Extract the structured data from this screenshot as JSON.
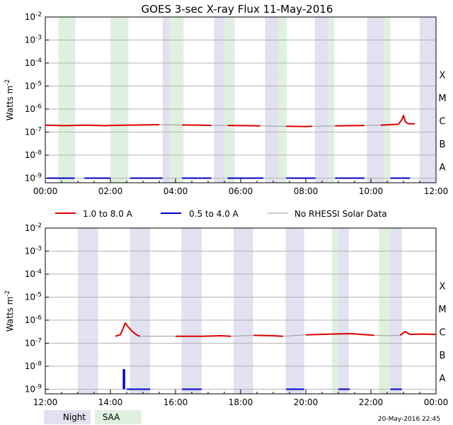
{
  "title": "GOES 3-sec X-ray Flux   11-May-2016",
  "ylabel": "Watts m-2",
  "ytick_labels": [
    "10-2",
    "10-3",
    "10-4",
    "10-5",
    "10-6",
    "10-7",
    "10-8",
    "10-9"
  ],
  "class_labels": [
    "X",
    "M",
    "C",
    "B",
    "A"
  ],
  "legend": {
    "items": [
      {
        "label": "1.0 to 8.0 A",
        "color": "#dd0000"
      },
      {
        "label": "0.5 to 4.0 A",
        "color": "#0000cc"
      },
      {
        "label": "No RHESSI Solar Data",
        "color": "#999999"
      }
    ]
  },
  "footer": {
    "night_label": "Night",
    "saa_label": "SAA",
    "timestamp": "20-May-2016 22:45"
  },
  "colors": {
    "night": "#e1e1f0",
    "saa": "#e0f0e0",
    "long": "#dd0000",
    "short": "#0000cc",
    "nodata": "#999999"
  },
  "chart_data": [
    {
      "type": "line",
      "name": "top-panel",
      "x_unit": "hours UT",
      "xlim": [
        0,
        12
      ],
      "ylim_log10": [
        -9.2,
        -2
      ],
      "x_tick_labels": [
        "00:00",
        "02:00",
        "04:00",
        "06:00",
        "08:00",
        "10:00",
        "12:00"
      ],
      "night_bands": [
        [
          3.6,
          3.82
        ],
        [
          5.18,
          5.5
        ],
        [
          6.75,
          7.15
        ],
        [
          8.28,
          8.7
        ],
        [
          9.88,
          10.4
        ],
        [
          11.5,
          12.0
        ]
      ],
      "saa_bands": [
        [
          0.4,
          0.92
        ],
        [
          2.0,
          2.55
        ],
        [
          3.82,
          4.25
        ],
        [
          5.5,
          5.82
        ],
        [
          7.15,
          7.42
        ],
        [
          8.7,
          8.88
        ],
        [
          10.4,
          10.6
        ]
      ],
      "series": [
        {
          "name": "1.0 to 8.0 A",
          "kind": "long",
          "segments": [
            [
              [
                0.0,
                2e-07
              ],
              [
                0.6,
                1.9e-07
              ],
              [
                1.2,
                2e-07
              ],
              [
                1.8,
                1.9e-07
              ],
              [
                2.4,
                2e-07
              ],
              [
                3.0,
                2.05e-07
              ],
              [
                3.5,
                2.1e-07
              ]
            ],
            [
              [
                4.2,
                2.05e-07
              ],
              [
                4.8,
                2e-07
              ],
              [
                5.1,
                1.95e-07
              ]
            ],
            [
              [
                5.6,
                1.95e-07
              ],
              [
                6.2,
                1.9e-07
              ],
              [
                6.6,
                1.85e-07
              ]
            ],
            [
              [
                7.4,
                1.8e-07
              ],
              [
                8.0,
                1.75e-07
              ],
              [
                8.2,
                1.8e-07
              ]
            ],
            [
              [
                8.9,
                1.85e-07
              ],
              [
                9.4,
                1.9e-07
              ],
              [
                9.8,
                1.95e-07
              ]
            ],
            [
              [
                10.3,
                2e-07
              ],
              [
                10.6,
                2.1e-07
              ],
              [
                10.85,
                2.2e-07
              ],
              [
                10.95,
                3.5e-07
              ],
              [
                11.0,
                5.3e-07
              ],
              [
                11.06,
                2.8e-07
              ],
              [
                11.15,
                2.3e-07
              ],
              [
                11.35,
                2.3e-07
              ]
            ]
          ]
        },
        {
          "name": "No RHESSI Solar Data",
          "kind": "nodata",
          "segments": [
            [
              [
                3.5,
                2.1e-07
              ],
              [
                4.2,
                2.05e-07
              ]
            ],
            [
              [
                5.1,
                1.95e-07
              ],
              [
                5.6,
                1.95e-07
              ]
            ],
            [
              [
                6.6,
                1.85e-07
              ],
              [
                7.4,
                1.8e-07
              ]
            ],
            [
              [
                8.2,
                1.8e-07
              ],
              [
                8.9,
                1.85e-07
              ]
            ],
            [
              [
                9.8,
                1.95e-07
              ],
              [
                10.3,
                2e-07
              ]
            ]
          ]
        },
        {
          "name": "0.5 to 4.0 A",
          "kind": "short",
          "segments": [
            [
              [
                0.05,
                1e-09
              ],
              [
                0.9,
                1e-09
              ]
            ],
            [
              [
                1.2,
                1e-09
              ],
              [
                2.0,
                1e-09
              ]
            ],
            [
              [
                2.6,
                1e-09
              ],
              [
                3.6,
                1e-09
              ]
            ],
            [
              [
                4.2,
                1e-09
              ],
              [
                5.1,
                1e-09
              ]
            ],
            [
              [
                5.6,
                1e-09
              ],
              [
                6.7,
                1e-09
              ]
            ],
            [
              [
                7.4,
                1e-09
              ],
              [
                8.3,
                1e-09
              ]
            ],
            [
              [
                8.9,
                1e-09
              ],
              [
                9.8,
                1e-09
              ]
            ],
            [
              [
                10.6,
                1e-09
              ],
              [
                11.2,
                1e-09
              ]
            ]
          ]
        }
      ]
    },
    {
      "type": "line",
      "name": "bottom-panel",
      "x_unit": "hours UT",
      "xlim": [
        12,
        24
      ],
      "ylim_log10": [
        -9.2,
        -2
      ],
      "x_tick_labels": [
        "12:00",
        "14:00",
        "16:00",
        "18:00",
        "20:00",
        "22:00",
        "00:00"
      ],
      "night_bands": [
        [
          13.0,
          13.62
        ],
        [
          14.6,
          15.22
        ],
        [
          16.18,
          16.8
        ],
        [
          17.78,
          18.38
        ],
        [
          19.38,
          19.95
        ],
        [
          21.0,
          21.32
        ],
        [
          22.58,
          22.95
        ]
      ],
      "saa_bands": [
        [
          20.8,
          21.0
        ],
        [
          22.25,
          22.58
        ]
      ],
      "series": [
        {
          "name": "1.0 to 8.0 A",
          "kind": "long",
          "segments": [
            [
              [
                14.15,
                2e-07
              ],
              [
                14.3,
                2.3e-07
              ],
              [
                14.38,
                4e-07
              ],
              [
                14.45,
                7.5e-07
              ],
              [
                14.55,
                5e-07
              ],
              [
                14.65,
                3.5e-07
              ],
              [
                14.8,
                2.3e-07
              ],
              [
                14.9,
                2e-07
              ]
            ],
            [
              [
                16.0,
                2e-07
              ],
              [
                16.8,
                2e-07
              ],
              [
                17.4,
                2.1e-07
              ],
              [
                17.7,
                2e-07
              ]
            ],
            [
              [
                18.4,
                2.2e-07
              ],
              [
                19.0,
                2.1e-07
              ],
              [
                19.3,
                2e-07
              ]
            ],
            [
              [
                20.0,
                2.3e-07
              ],
              [
                20.8,
                2.5e-07
              ],
              [
                21.4,
                2.6e-07
              ],
              [
                21.7,
                2.4e-07
              ],
              [
                22.1,
                2.2e-07
              ]
            ],
            [
              [
                22.9,
                2.2e-07
              ],
              [
                23.05,
                3.2e-07
              ],
              [
                23.2,
                2.4e-07
              ],
              [
                23.6,
                2.5e-07
              ],
              [
                24.0,
                2.4e-07
              ]
            ]
          ]
        },
        {
          "name": "No RHESSI Solar Data",
          "kind": "nodata",
          "segments": [
            [
              [
                14.9,
                2e-07
              ],
              [
                15.5,
                2e-07
              ],
              [
                16.0,
                2e-07
              ]
            ],
            [
              [
                17.7,
                2e-07
              ],
              [
                18.4,
                2.2e-07
              ]
            ],
            [
              [
                19.3,
                2e-07
              ],
              [
                20.0,
                2.3e-07
              ]
            ],
            [
              [
                22.1,
                2.2e-07
              ],
              [
                22.5,
                2.1e-07
              ],
              [
                22.9,
                2.2e-07
              ]
            ]
          ]
        },
        {
          "name": "0.5 to 4.0 A",
          "kind": "short",
          "segments": [
            [
              [
                14.4,
                1e-09
              ],
              [
                14.4,
                7e-09
              ],
              [
                14.43,
                7e-09
              ],
              [
                14.43,
                1e-09
              ]
            ],
            [
              [
                14.5,
                1e-09
              ],
              [
                15.22,
                1e-09
              ]
            ],
            [
              [
                16.2,
                1e-09
              ],
              [
                16.8,
                1e-09
              ]
            ],
            [
              [
                19.4,
                1e-09
              ],
              [
                19.95,
                1e-09
              ]
            ],
            [
              [
                21.0,
                1e-09
              ],
              [
                21.35,
                1e-09
              ]
            ],
            [
              [
                22.6,
                1e-09
              ],
              [
                22.95,
                1e-09
              ]
            ]
          ]
        }
      ]
    }
  ]
}
